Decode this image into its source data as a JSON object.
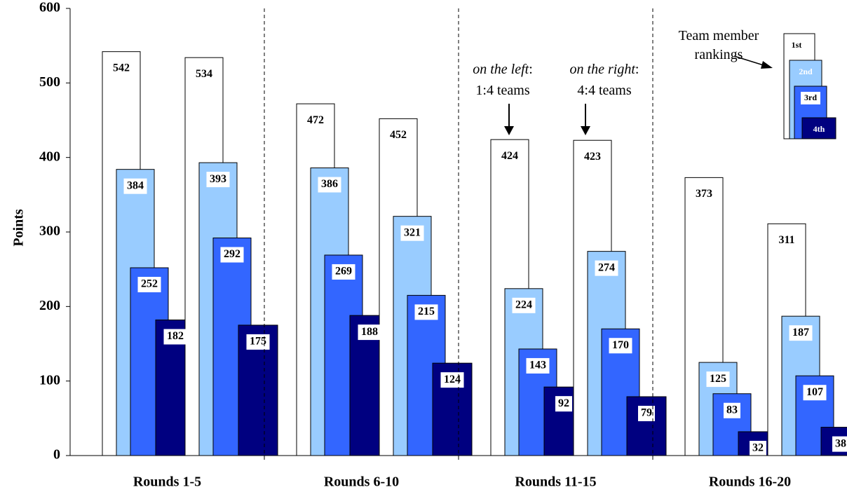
{
  "chart_data": {
    "type": "bar",
    "ylabel": "Points",
    "xlabel": "",
    "ylim": [
      0,
      600
    ],
    "yticks": [
      "0",
      "100",
      "200",
      "300",
      "400",
      "500",
      "600"
    ],
    "categories": [
      "Rounds 1-5",
      "Rounds 6-10",
      "Rounds 11-15",
      "Rounds 16-20"
    ],
    "subgroups": [
      "1:4 teams",
      "4:4 teams"
    ],
    "series": [
      {
        "name": "1st",
        "color": "#ffffff",
        "values": [
          [
            542,
            534
          ],
          [
            472,
            452
          ],
          [
            424,
            423
          ],
          [
            373,
            311
          ]
        ]
      },
      {
        "name": "2nd",
        "color": "#99ccff",
        "values": [
          [
            384,
            393
          ],
          [
            386,
            321
          ],
          [
            224,
            274
          ],
          [
            125,
            187
          ]
        ]
      },
      {
        "name": "3rd",
        "color": "#3366ff",
        "values": [
          [
            252,
            292
          ],
          [
            269,
            215
          ],
          [
            143,
            170
          ],
          [
            83,
            107
          ]
        ]
      },
      {
        "name": "4th",
        "color": "#000080",
        "values": [
          [
            182,
            175
          ],
          [
            188,
            124
          ],
          [
            92,
            79
          ],
          [
            32,
            38
          ]
        ]
      }
    ],
    "annotations": {
      "left_note": {
        "line1_em": "on the left",
        "line1_tail": ":",
        "line2": "1:4 teams"
      },
      "right_note": {
        "line1_em": "on the right",
        "line1_tail": ":",
        "line2": "4:4 teams"
      },
      "legend_title_line1": "Team member",
      "legend_title_line2": "rankings"
    },
    "grid": false,
    "legend_position": "top-right"
  }
}
